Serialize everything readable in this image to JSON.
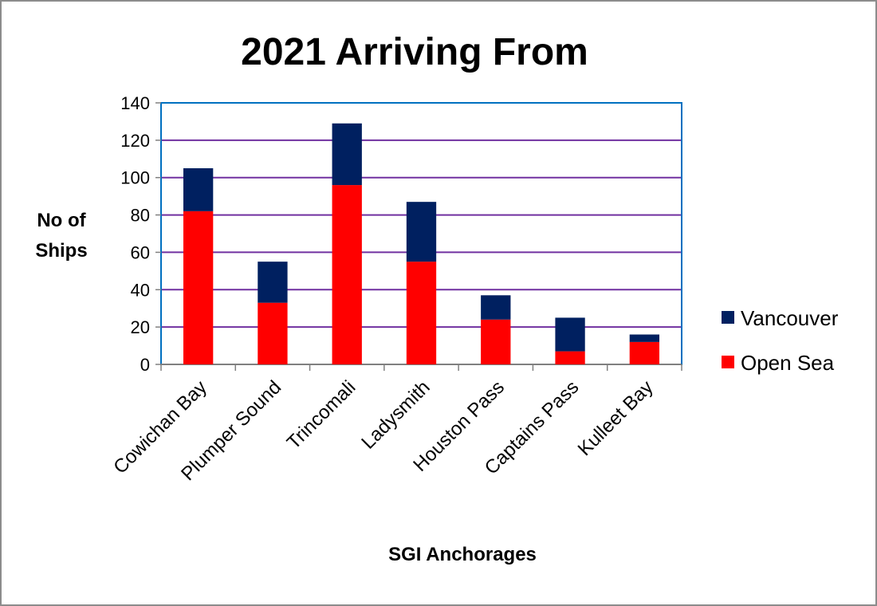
{
  "chart_data": {
    "type": "bar",
    "stacked": true,
    "title": "2021 Arriving From",
    "xlabel": "SGI Anchorages",
    "ylabel_lines": [
      "No of",
      "Ships"
    ],
    "categories": [
      "Cowichan Bay",
      "Plumper Sound",
      "Trincomali",
      "Ladysmith",
      "Houston Pass",
      "Captains Pass",
      "Kulleet Bay"
    ],
    "series": [
      {
        "name": "Open Sea",
        "color": "#ff0000",
        "values": [
          82,
          33,
          96,
          55,
          24,
          7,
          12
        ]
      },
      {
        "name": "Vancouver",
        "color": "#002060",
        "values": [
          23,
          22,
          33,
          32,
          13,
          18,
          4
        ]
      }
    ],
    "ylim": [
      0,
      140
    ],
    "yticks": [
      0,
      20,
      40,
      60,
      80,
      100,
      120,
      140
    ],
    "grid": true,
    "grid_color": "#7030a0",
    "axis_border_color": "#0070c0",
    "legend_position": "right",
    "legend_order": [
      "Vancouver",
      "Open Sea"
    ]
  }
}
